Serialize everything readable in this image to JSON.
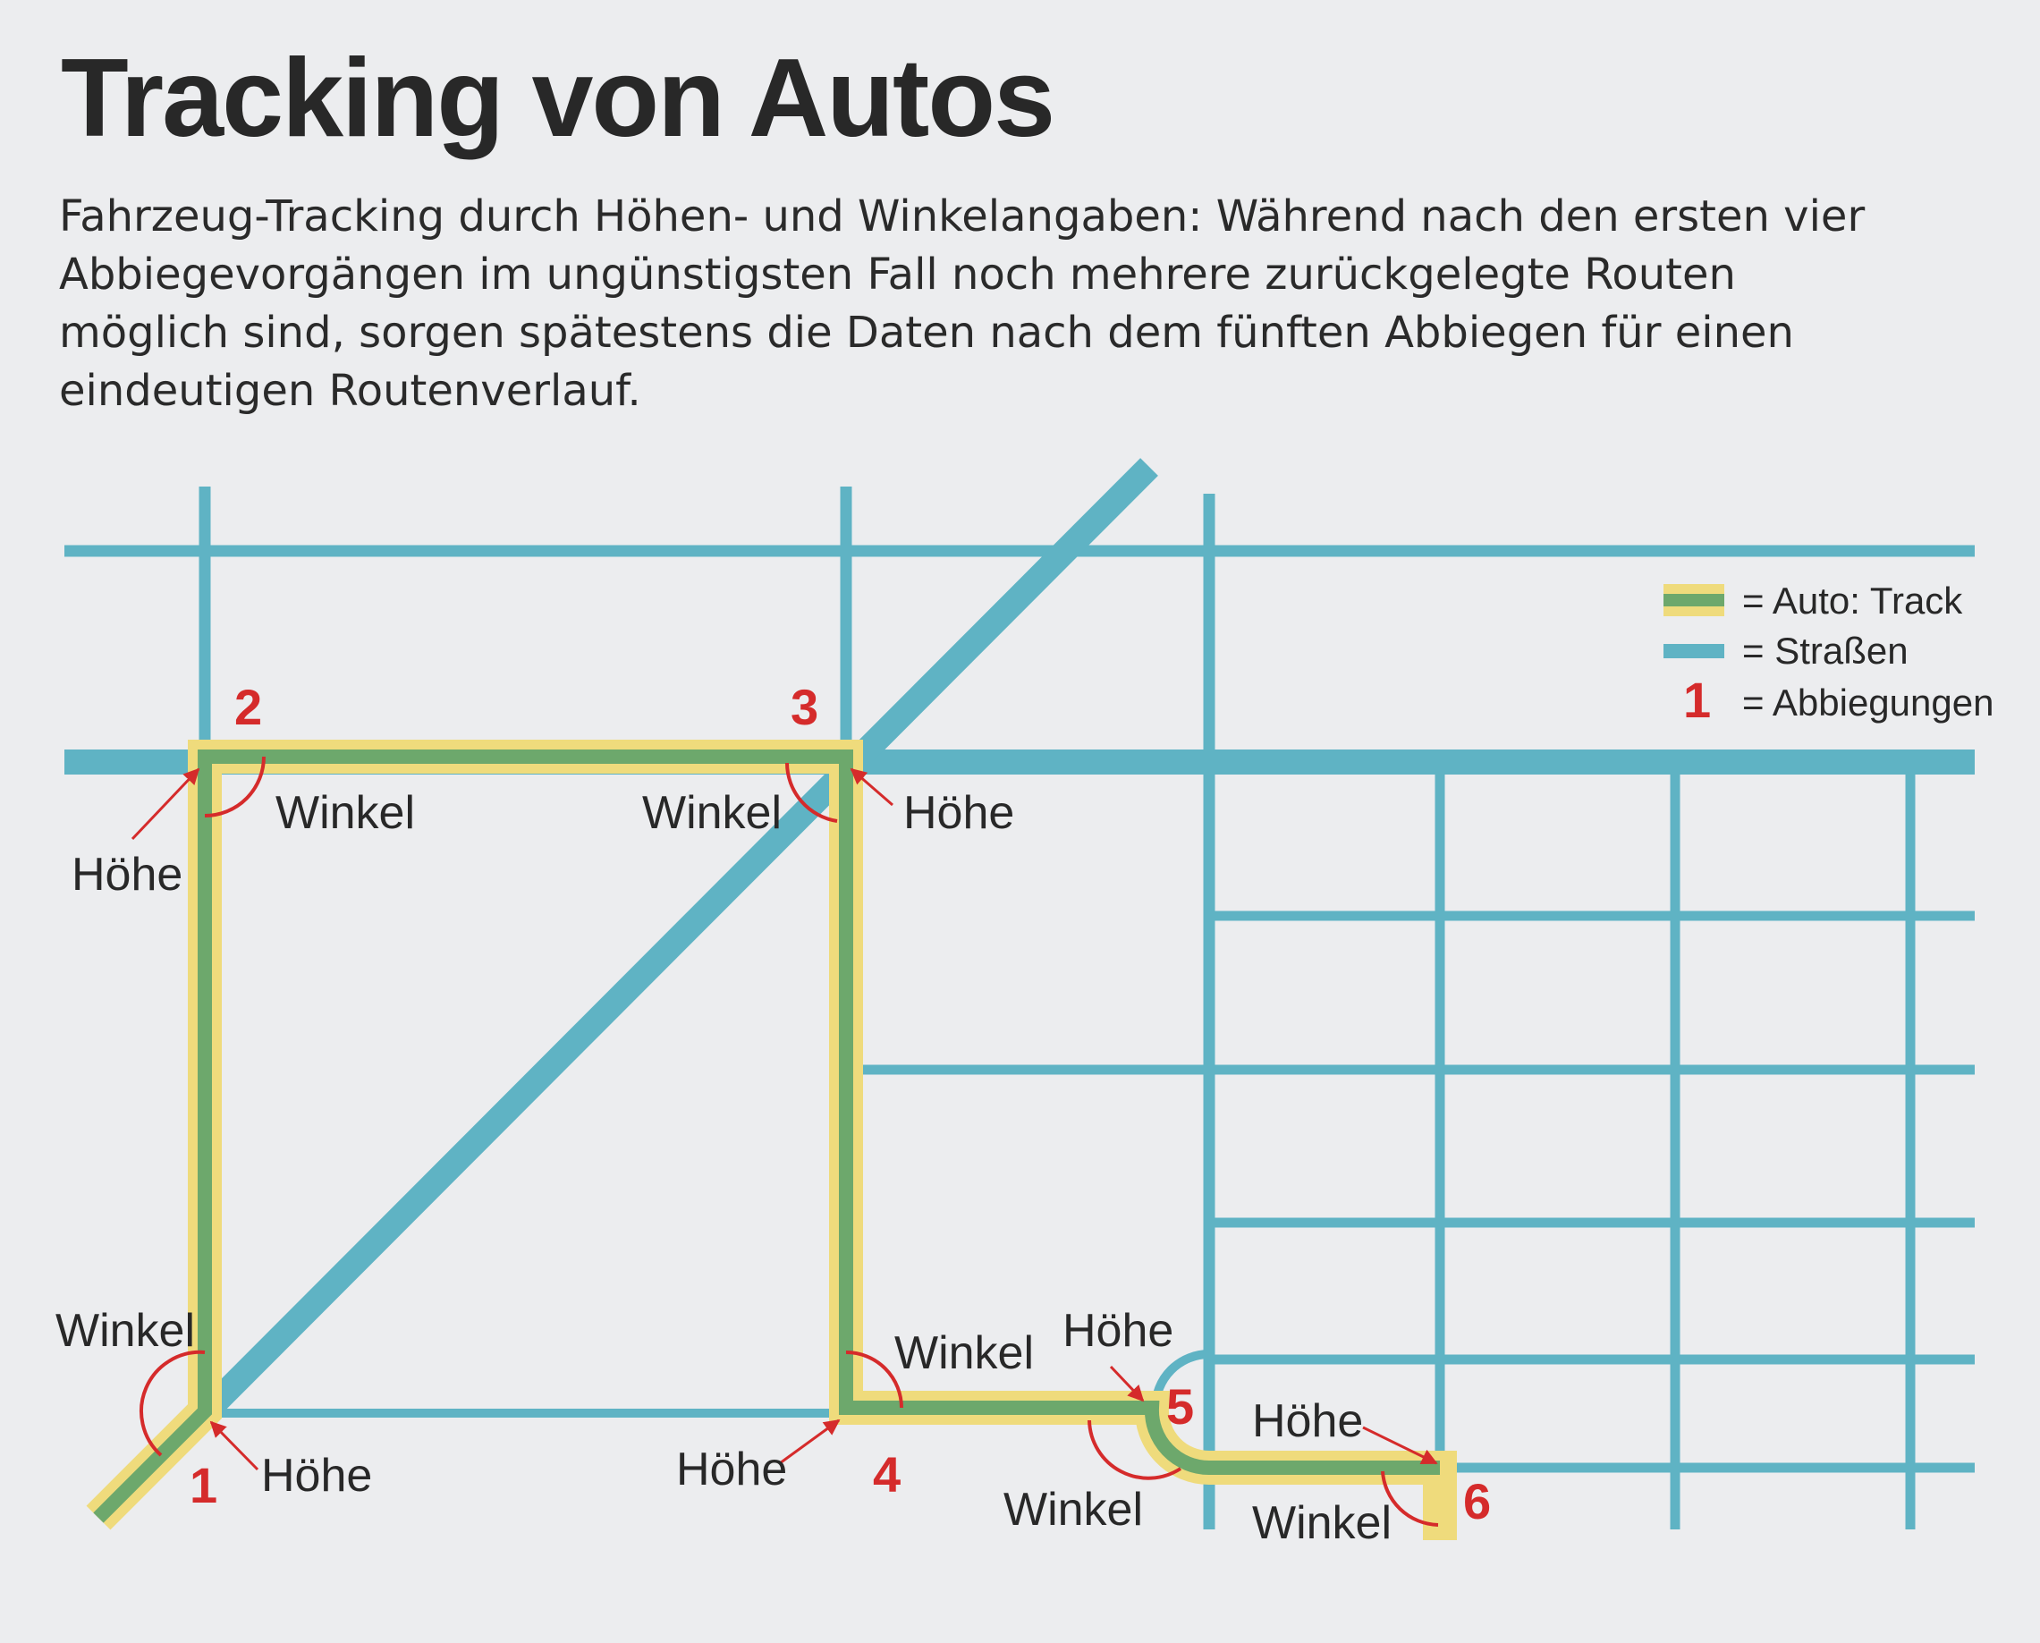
{
  "title": "Tracking von Autos",
  "subtitle": "Fahrzeug-Tracking durch Höhen- und Winkelangaben: Während nach den ersten vier Abbiegevorgängen im ungünstigsten Fall noch mehrere zurückgelegte Routen möglich sind, sorgen spätestens die Daten nach dem fünften Abbiegen für einen eindeutigen Routenverlauf.",
  "legend": {
    "track": "= Auto: Track",
    "streets": "= Straßen",
    "turns_number": "1",
    "turns": "= Abbiegungen"
  },
  "labels": {
    "winkel": "Winkel",
    "hoehe": "Höhe"
  },
  "turns": [
    "1",
    "2",
    "3",
    "4",
    "5",
    "6"
  ],
  "colors": {
    "background": "#ecedef",
    "street": "#5fb3c4",
    "track_outer": "#efdb7c",
    "track_inner": "#6da86c",
    "marker": "#d52b2b",
    "angle_arc": "#d52b2b"
  }
}
